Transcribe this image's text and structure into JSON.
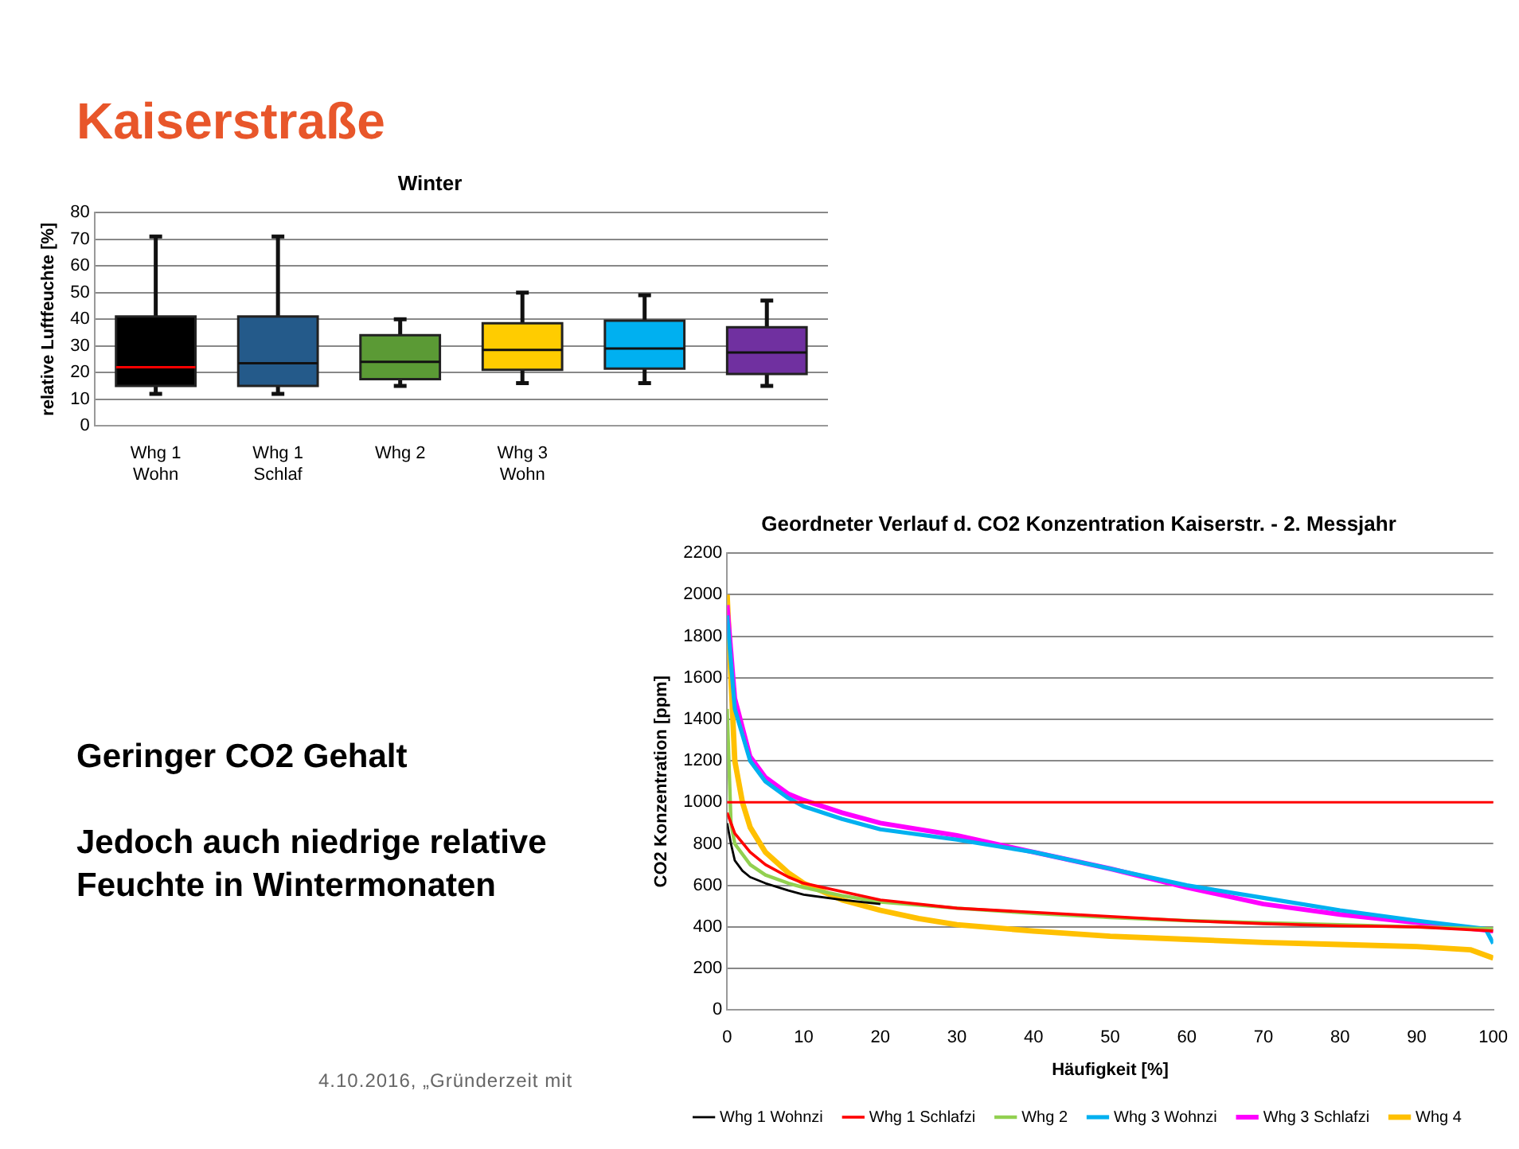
{
  "chart_data": [
    {
      "type": "box",
      "title": "Winter",
      "ylabel": "relative Luftfeuchte [%]",
      "categories": [
        "Whg 1\nWohn",
        "Whg 1\nSchlaf",
        "Whg 2",
        "Whg 3\nWohn",
        null,
        null
      ],
      "colors": [
        "#000000",
        "#245a8a",
        "#5b9a35",
        "#ffcc00",
        "#00b0f0",
        "#7030a0"
      ],
      "boxes": [
        {
          "low": 12,
          "q1": 15,
          "median": 22,
          "q3": 41,
          "high": 71
        },
        {
          "low": 12,
          "q1": 15,
          "median": 23.5,
          "q3": 41,
          "high": 71
        },
        {
          "low": 15,
          "q1": 17.5,
          "median": 24,
          "q3": 34,
          "high": 40
        },
        {
          "low": 16,
          "q1": 21,
          "median": 28.5,
          "q3": 38.5,
          "high": 50
        },
        {
          "low": 16,
          "q1": 21.5,
          "median": 29,
          "q3": 39.5,
          "high": 49
        },
        {
          "low": 15,
          "q1": 19.5,
          "median": 27.5,
          "q3": 37,
          "high": 47
        }
      ],
      "ylim": [
        0,
        80
      ],
      "yticks": [
        0,
        10,
        20,
        30,
        40,
        50,
        60,
        70,
        80
      ],
      "grid": "y"
    },
    {
      "type": "line",
      "title": "Geordneter Verlauf d. CO2 Konzentration Kaiserstr. - 2. Messjahr",
      "xlabel": "Häufigkeit [%]",
      "ylabel": "CO2 Konzentration [ppm]",
      "xlim": [
        0,
        100
      ],
      "xticks": [
        0,
        10,
        20,
        30,
        40,
        50,
        60,
        70,
        80,
        90,
        100
      ],
      "ylim": [
        0,
        2200
      ],
      "yticks": [
        0,
        200,
        400,
        600,
        800,
        1000,
        1200,
        1400,
        1600,
        1800,
        2000,
        2200
      ],
      "grid": "y",
      "legend": "bottom",
      "marker": "none",
      "ref_lines": [
        {
          "axis": "y",
          "value": 1000,
          "color": "#ff0000"
        }
      ],
      "series": [
        {
          "name": "Whg 1 Wohnzi",
          "color": "#000000",
          "x": [
            0,
            0.5,
            1,
            2,
            3,
            5,
            8,
            10,
            15,
            20
          ],
          "values": [
            900,
            800,
            720,
            670,
            640,
            610,
            575,
            555,
            530,
            510
          ]
        },
        {
          "name": "Whg 1 Schlafzi",
          "color": "#ff0000",
          "x": [
            0,
            1,
            3,
            5,
            8,
            10,
            15,
            20,
            30,
            40,
            50,
            60,
            70,
            80,
            90,
            100
          ],
          "values": [
            950,
            850,
            760,
            700,
            640,
            610,
            570,
            530,
            490,
            470,
            450,
            430,
            415,
            405,
            400,
            380
          ]
        },
        {
          "name": "Whg 2",
          "color": "#92d050",
          "x": [
            0,
            0.5,
            1,
            3,
            5,
            8,
            10,
            15,
            20,
            30,
            40,
            50,
            60,
            70,
            80,
            90,
            100
          ],
          "values": [
            1450,
            900,
            800,
            700,
            650,
            610,
            590,
            550,
            520,
            490,
            465,
            445,
            430,
            420,
            410,
            400,
            390
          ]
        },
        {
          "name": "Whg 3 Wohnzi",
          "color": "#00b0f0",
          "x": [
            0,
            1,
            3,
            5,
            8,
            10,
            15,
            20,
            30,
            40,
            50,
            60,
            70,
            80,
            90,
            99,
            100
          ],
          "values": [
            1900,
            1450,
            1200,
            1100,
            1020,
            980,
            920,
            870,
            820,
            760,
            680,
            600,
            540,
            480,
            430,
            390,
            320
          ]
        },
        {
          "name": "Whg 3 Schlafzi",
          "color": "#ff00ff",
          "x": [
            0,
            1,
            3,
            5,
            8,
            10,
            15,
            20,
            30,
            40,
            50,
            60,
            70,
            80,
            90,
            100
          ],
          "values": [
            1950,
            1500,
            1220,
            1120,
            1040,
            1010,
            950,
            900,
            840,
            760,
            680,
            590,
            510,
            460,
            420,
            380
          ]
        },
        {
          "name": "Whg 4",
          "color": "#ffc000",
          "x": [
            0,
            0.5,
            1,
            2,
            3,
            5,
            8,
            10,
            15,
            20,
            25,
            30,
            40,
            50,
            60,
            70,
            80,
            90,
            97,
            100
          ],
          "values": [
            2000,
            1600,
            1200,
            1000,
            880,
            760,
            660,
            610,
            530,
            480,
            440,
            410,
            380,
            355,
            340,
            325,
            315,
            305,
            290,
            250
          ]
        }
      ]
    },
    {
      "type": "other",
      "title": "Kaiserstraße",
      "annotations": [
        "Geringer CO2 Gehalt",
        "Jedoch auch niedrige relative Feuchte in Wintermonaten",
        "4.10.2016, „Gründerzeit mit"
      ]
    }
  ]
}
